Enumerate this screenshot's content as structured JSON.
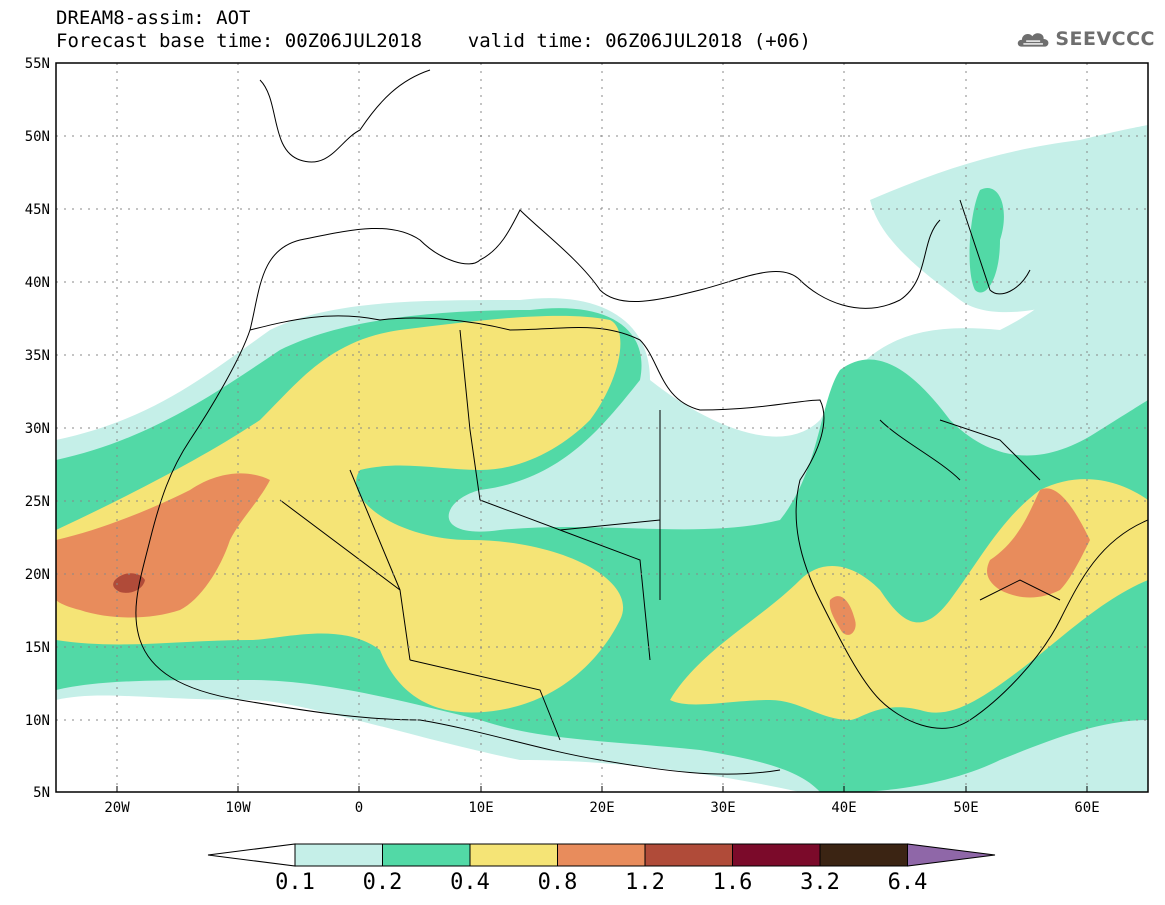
{
  "header": {
    "title": "DREAM8-assim: AOT",
    "subtitle": "Forecast base time: 00Z06JUL2018    valid time: 06Z06JUL2018 (+06)"
  },
  "logo": {
    "text": "SEEVCCC",
    "icon": "cloud-icon"
  },
  "map": {
    "lat_labels": [
      "55N",
      "50N",
      "45N",
      "40N",
      "35N",
      "30N",
      "25N",
      "20N",
      "15N",
      "10N",
      "5N"
    ],
    "lon_labels": [
      "20W",
      "10W",
      "0",
      "10E",
      "20E",
      "30E",
      "40E",
      "50E",
      "60E"
    ],
    "lon_range": [
      -25,
      65
    ],
    "lat_range": [
      5,
      55
    ]
  },
  "colorbar": {
    "levels": [
      "0.1",
      "0.2",
      "0.4",
      "0.8",
      "1.2",
      "1.6",
      "3.2",
      "6.4"
    ],
    "colors": [
      "#ffffff",
      "#c5efe8",
      "#52d9a6",
      "#f5e476",
      "#e88c5c",
      "#b04b39",
      "#7b0a2a",
      "#3b2413",
      "#8f67a8"
    ]
  }
}
